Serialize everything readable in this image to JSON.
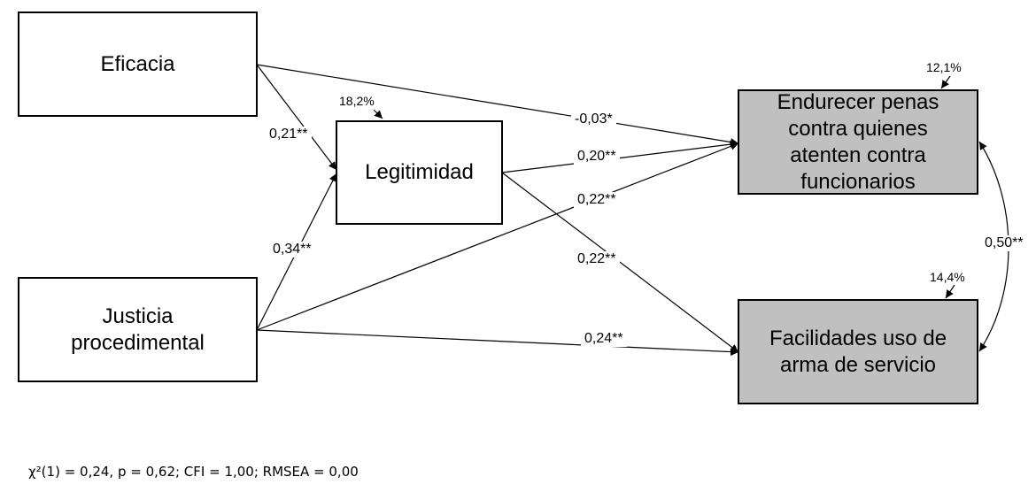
{
  "nodes": {
    "eficacia": {
      "label": "Eficacia"
    },
    "legitimidad": {
      "label": "Legitimidad",
      "r2": "18,2%"
    },
    "justicia": {
      "label_line1": "Justicia",
      "label_line2": "procedimental"
    },
    "endurecer": {
      "label_line1": "Endurecer penas",
      "label_line2": "contra quienes",
      "label_line3": "atenten contra",
      "label_line4": "funcionarios",
      "r2": "12,1%"
    },
    "facilidades": {
      "label_line1": "Facilidades uso de",
      "label_line2": "arma de servicio",
      "r2": "14,4%"
    }
  },
  "paths": {
    "eficacia_legitimidad": "0,21**",
    "justicia_legitimidad": "0,34**",
    "eficacia_endurecer": "-0,03*",
    "legitimidad_endurecer": "0,20**",
    "justicia_endurecer": "0,22**",
    "legitimidad_facilidades": "0,22**",
    "justicia_facilidades": "0,24**",
    "endurecer_facilidades_cov": "0,50**"
  },
  "fit_indices": "χ²(1) = 0,24, p = 0,62; CFI = 1,00; RMSEA = 0,00",
  "colors": {
    "outcome_fill": "#c0c0c0",
    "stroke": "#000000"
  }
}
